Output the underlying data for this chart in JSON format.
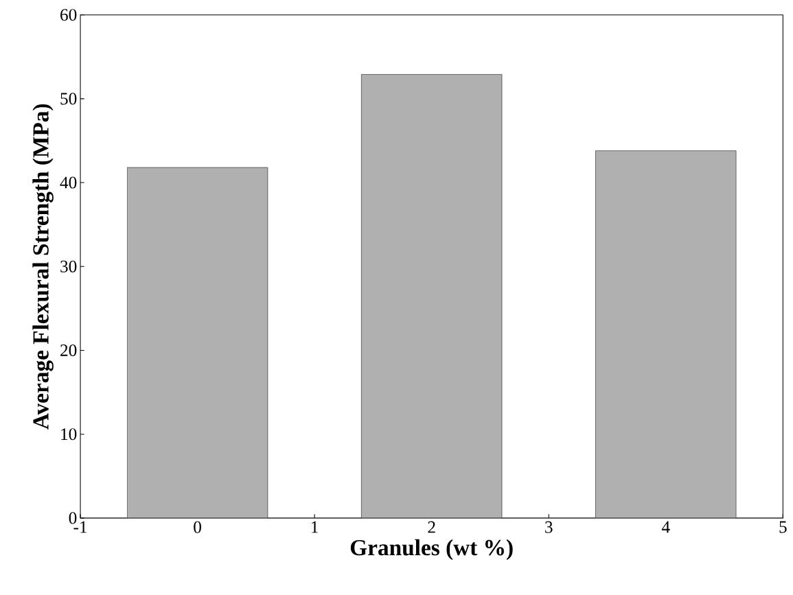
{
  "chart_data": {
    "type": "bar",
    "xlabel": "Granules (wt %)",
    "ylabel": "Average Flexural Strength (MPa)",
    "x": [
      0,
      2,
      4
    ],
    "values": [
      41.8,
      52.9,
      43.8
    ],
    "color": "#b0b0b0",
    "xlim": [
      -1,
      5
    ],
    "xticks": [
      -1,
      0,
      1,
      2,
      3,
      4,
      5
    ],
    "ylim": [
      0,
      60
    ],
    "yticks": [
      0,
      10,
      20,
      30,
      40,
      50,
      60
    ]
  }
}
